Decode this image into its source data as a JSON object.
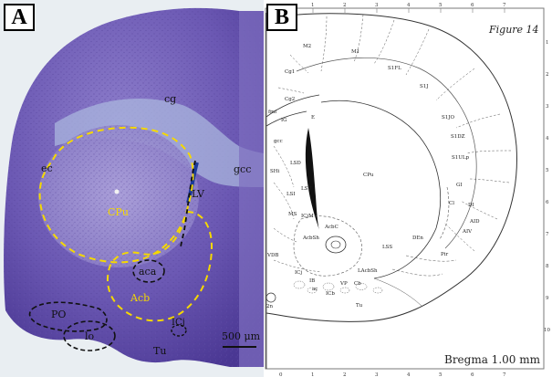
{
  "panel_a": {
    "label": "A",
    "regions": {
      "cg": "cg",
      "ec": "ec",
      "gcc": "gcc",
      "lv": "LV",
      "cpu": "CPu",
      "aca": "aca",
      "acb": "Acb",
      "po": "PO",
      "lo": "lo",
      "icj": "ICj",
      "tu": "Tu"
    },
    "scale_bar": "500 μm",
    "colors": {
      "tissue": "#6b58b3",
      "outline_yellow": "#f5d800",
      "outline_black": "#111111"
    }
  },
  "panel_b": {
    "label": "B",
    "figure_label": "Figure 14",
    "bregma": "Bregma 1.00 mm",
    "top_ticks": [
      "1",
      "2",
      "3",
      "4",
      "5",
      "6",
      "7"
    ],
    "bottom_ticks": [
      "0",
      "1",
      "2",
      "3",
      "4",
      "5",
      "6",
      "7"
    ],
    "right_ticks": [
      "1",
      "2",
      "3",
      "4",
      "5",
      "6",
      "7",
      "8",
      "9",
      "10"
    ],
    "regions": {
      "m2": "M2",
      "m1": "M1",
      "cg1": "Cg1",
      "cg2": "Cg2",
      "s1fl": "S1FL",
      "s1j": "S1J",
      "s1jo": "S1JO",
      "s1dz": "S1DZ",
      "s1ulp": "S1ULp",
      "ig": "IG",
      "fmi": "fmi",
      "gcc": "gcc",
      "e": "E",
      "shi": "SHi",
      "lsd": "LSD",
      "lsi": "LSI",
      "lsv": "LSV",
      "cpu": "CPu",
      "gi": "GI",
      "di": "DI",
      "cl": "Cl",
      "aid": "AID",
      "aiv": "AIV",
      "ms": "MS",
      "icjm": "ICjM",
      "acbsh": "AcbSh",
      "acbc": "AcbC",
      "vdb": "VDB",
      "lss": "LSS",
      "den": "DEn",
      "pir": "Pir",
      "lacbsh": "LAcbSh",
      "icj": "ICj",
      "vp": "VP",
      "tu": "Tu",
      "ib": "IB",
      "cb": "Cb",
      "ac": "ac",
      "icb": "ICb",
      "2n": "2n"
    }
  }
}
